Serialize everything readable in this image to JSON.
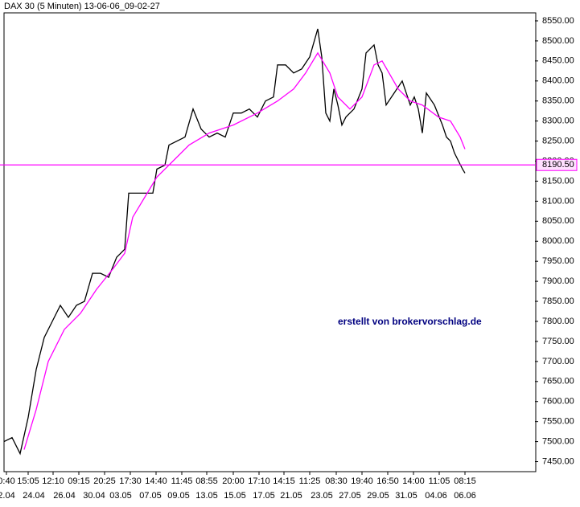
{
  "chart_data": {
    "type": "line",
    "title": "DAX 30 (5 Minuten) 13-06-06_09-02-27",
    "annotation": "erstellt von brokervorschlag.de",
    "xlim": [
      0,
      660
    ],
    "ylim": [
      7425,
      8570
    ],
    "yticks": [
      {
        "value": 7450,
        "label": "7450.00"
      },
      {
        "value": 7500,
        "label": "7500.00"
      },
      {
        "value": 7550,
        "label": "7550.00"
      },
      {
        "value": 7600,
        "label": "7600.00"
      },
      {
        "value": 7650,
        "label": "7650.00"
      },
      {
        "value": 7700,
        "label": "7700.00"
      },
      {
        "value": 7750,
        "label": "7750.00"
      },
      {
        "value": 7800,
        "label": "7800.00"
      },
      {
        "value": 7850,
        "label": "7850.00"
      },
      {
        "value": 7900,
        "label": "7900.00"
      },
      {
        "value": 7950,
        "label": "7950.00"
      },
      {
        "value": 8000,
        "label": "8000.00"
      },
      {
        "value": 8050,
        "label": "8050.00"
      },
      {
        "value": 8100,
        "label": "8100.00"
      },
      {
        "value": 8150,
        "label": "8150.00"
      },
      {
        "value": 8200,
        "label": "8200.00"
      },
      {
        "value": 8250,
        "label": "8250.00"
      },
      {
        "value": 8300,
        "label": "8300.00"
      },
      {
        "value": 8350,
        "label": "8350.00"
      },
      {
        "value": 8400,
        "label": "8400.00"
      },
      {
        "value": 8450,
        "label": "8450.00"
      },
      {
        "value": 8500,
        "label": "8500.00"
      },
      {
        "value": 8550,
        "label": "8550.00"
      }
    ],
    "xticks": [
      {
        "value": 3,
        "label": "0:40"
      },
      {
        "value": 30,
        "label": "15:05"
      },
      {
        "value": 61,
        "label": "12:10"
      },
      {
        "value": 93,
        "label": "09:15"
      },
      {
        "value": 125,
        "label": "20:25"
      },
      {
        "value": 157,
        "label": "17:30"
      },
      {
        "value": 189,
        "label": "14:40"
      },
      {
        "value": 221,
        "label": "11:45"
      },
      {
        "value": 252,
        "label": "08:55"
      },
      {
        "value": 285,
        "label": "20:00"
      },
      {
        "value": 317,
        "label": "17:10"
      },
      {
        "value": 348,
        "label": "14:15"
      },
      {
        "value": 380,
        "label": "11:25"
      },
      {
        "value": 413,
        "label": "08:30"
      },
      {
        "value": 445,
        "label": "19:40"
      },
      {
        "value": 477,
        "label": "16:50"
      },
      {
        "value": 509,
        "label": "14:00"
      },
      {
        "value": 541,
        "label": "11:05"
      },
      {
        "value": 573,
        "label": "08:15"
      }
    ],
    "date_ticks": [
      {
        "value": 3,
        "label": "2.04"
      },
      {
        "value": 37,
        "label": "24.04"
      },
      {
        "value": 75,
        "label": "26.04"
      },
      {
        "value": 112,
        "label": "30.04"
      },
      {
        "value": 145,
        "label": "03.05"
      },
      {
        "value": 182,
        "label": "07.05"
      },
      {
        "value": 217,
        "label": "09.05"
      },
      {
        "value": 252,
        "label": "13.05"
      },
      {
        "value": 287,
        "label": "15.05"
      },
      {
        "value": 323,
        "label": "17.05"
      },
      {
        "value": 357,
        "label": "21.05"
      },
      {
        "value": 395,
        "label": "23.05"
      },
      {
        "value": 430,
        "label": "27.05"
      },
      {
        "value": 465,
        "label": "29.05"
      },
      {
        "value": 500,
        "label": "31.05"
      },
      {
        "value": 537,
        "label": "04.06"
      },
      {
        "value": 573,
        "label": "06.06"
      }
    ],
    "hline": {
      "value": 8190.5,
      "label": "8190.50",
      "color": "#ff00ff"
    },
    "series": [
      {
        "color": "#000000",
        "x": [
          0,
          10,
          20,
          30,
          40,
          50,
          60,
          70,
          80,
          90,
          100,
          110,
          120,
          130,
          140,
          150,
          155,
          165,
          175,
          185,
          190,
          200,
          205,
          215,
          225,
          235,
          245,
          255,
          265,
          275,
          285,
          295,
          305,
          315,
          325,
          335,
          340,
          350,
          360,
          370,
          380,
          390,
          395,
          400,
          405,
          410,
          415,
          420,
          425,
          435,
          445,
          450,
          460,
          465,
          470,
          475,
          485,
          495,
          505,
          510,
          515,
          520,
          525,
          535,
          545,
          550,
          555,
          560,
          565,
          570,
          573
        ],
        "values": [
          7500,
          7510,
          7470,
          7560,
          7680,
          7760,
          7800,
          7840,
          7810,
          7840,
          7850,
          7920,
          7920,
          7910,
          7960,
          7980,
          8120,
          8120,
          8120,
          8120,
          8180,
          8190,
          8240,
          8250,
          8260,
          8330,
          8280,
          8260,
          8270,
          8260,
          8320,
          8320,
          8330,
          8310,
          8350,
          8360,
          8440,
          8440,
          8420,
          8430,
          8460,
          8530,
          8460,
          8320,
          8300,
          8380,
          8340,
          8290,
          8310,
          8330,
          8380,
          8470,
          8490,
          8440,
          8420,
          8340,
          8370,
          8400,
          8340,
          8360,
          8330,
          8270,
          8370,
          8340,
          8290,
          8260,
          8250,
          8220,
          8200,
          8180,
          8170
        ]
      },
      {
        "color": "#ff00ff",
        "x": [
          25,
          40,
          55,
          75,
          95,
          115,
          135,
          150,
          160,
          175,
          190,
          210,
          230,
          255,
          285,
          315,
          340,
          360,
          375,
          390,
          405,
          415,
          430,
          445,
          460,
          470,
          490,
          505,
          520,
          540,
          555,
          567,
          573
        ],
        "values": [
          7480,
          7580,
          7700,
          7780,
          7820,
          7880,
          7930,
          7970,
          8060,
          8110,
          8160,
          8200,
          8240,
          8270,
          8290,
          8320,
          8350,
          8380,
          8420,
          8470,
          8420,
          8360,
          8330,
          8360,
          8440,
          8450,
          8380,
          8350,
          8340,
          8310,
          8300,
          8260,
          8230
        ]
      }
    ]
  }
}
